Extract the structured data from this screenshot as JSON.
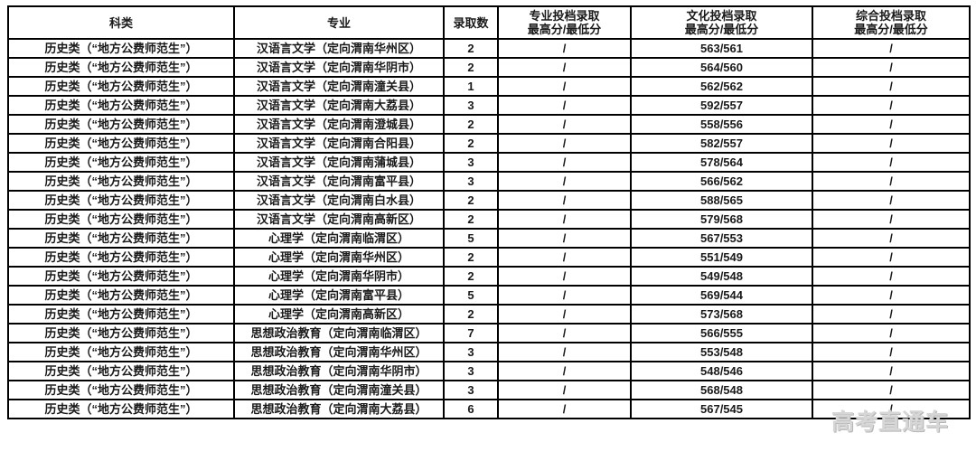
{
  "table": {
    "headers": [
      {
        "line1": "科类",
        "line2": ""
      },
      {
        "line1": "专业",
        "line2": ""
      },
      {
        "line1": "录取数",
        "line2": ""
      },
      {
        "line1": "专业投档录取",
        "line2": "最高分/最低分"
      },
      {
        "line1": "文化投档录取",
        "line2": "最高分/最低分"
      },
      {
        "line1": "综合投档录取",
        "line2": "最高分/最低分"
      }
    ],
    "rows": [
      {
        "category": "历史类（“地方公费师范生”）",
        "major": "汉语言文学（定向渭南华州区）",
        "count": "2",
        "major_score": "/",
        "culture_score": "563/561",
        "comprehensive_score": "/"
      },
      {
        "category": "历史类（“地方公费师范生”）",
        "major": "汉语言文学（定向渭南华阴市）",
        "count": "2",
        "major_score": "/",
        "culture_score": "564/560",
        "comprehensive_score": "/"
      },
      {
        "category": "历史类（“地方公费师范生”）",
        "major": "汉语言文学（定向渭南潼关县）",
        "count": "1",
        "major_score": "/",
        "culture_score": "562/562",
        "comprehensive_score": "/"
      },
      {
        "category": "历史类（“地方公费师范生”）",
        "major": "汉语言文学（定向渭南大荔县）",
        "count": "3",
        "major_score": "/",
        "culture_score": "592/557",
        "comprehensive_score": "/"
      },
      {
        "category": "历史类（“地方公费师范生”）",
        "major": "汉语言文学（定向渭南澄城县）",
        "count": "2",
        "major_score": "/",
        "culture_score": "558/556",
        "comprehensive_score": "/"
      },
      {
        "category": "历史类（“地方公费师范生”）",
        "major": "汉语言文学（定向渭南合阳县）",
        "count": "2",
        "major_score": "/",
        "culture_score": "582/557",
        "comprehensive_score": "/"
      },
      {
        "category": "历史类（“地方公费师范生”）",
        "major": "汉语言文学（定向渭南蒲城县）",
        "count": "3",
        "major_score": "/",
        "culture_score": "578/564",
        "comprehensive_score": "/"
      },
      {
        "category": "历史类（“地方公费师范生”）",
        "major": "汉语言文学（定向渭南富平县）",
        "count": "3",
        "major_score": "/",
        "culture_score": "566/562",
        "comprehensive_score": "/"
      },
      {
        "category": "历史类（“地方公费师范生”）",
        "major": "汉语言文学（定向渭南白水县）",
        "count": "2",
        "major_score": "/",
        "culture_score": "588/565",
        "comprehensive_score": "/"
      },
      {
        "category": "历史类（“地方公费师范生”）",
        "major": "汉语言文学（定向渭南高新区）",
        "count": "2",
        "major_score": "/",
        "culture_score": "579/568",
        "comprehensive_score": "/"
      },
      {
        "category": "历史类（“地方公费师范生”）",
        "major": "心理学（定向渭南临渭区）",
        "count": "5",
        "major_score": "/",
        "culture_score": "567/553",
        "comprehensive_score": "/"
      },
      {
        "category": "历史类（“地方公费师范生”）",
        "major": "心理学（定向渭南华州区）",
        "count": "2",
        "major_score": "/",
        "culture_score": "551/549",
        "comprehensive_score": "/"
      },
      {
        "category": "历史类（“地方公费师范生”）",
        "major": "心理学（定向渭南华阴市）",
        "count": "2",
        "major_score": "/",
        "culture_score": "549/548",
        "comprehensive_score": "/"
      },
      {
        "category": "历史类（“地方公费师范生”）",
        "major": "心理学（定向渭南富平县）",
        "count": "5",
        "major_score": "/",
        "culture_score": "569/544",
        "comprehensive_score": "/"
      },
      {
        "category": "历史类（“地方公费师范生”）",
        "major": "心理学（定向渭南高新区）",
        "count": "2",
        "major_score": "/",
        "culture_score": "573/568",
        "comprehensive_score": "/"
      },
      {
        "category": "历史类（“地方公费师范生”）",
        "major": "思想政治教育（定向渭南临渭区）",
        "count": "7",
        "major_score": "/",
        "culture_score": "566/555",
        "comprehensive_score": "/"
      },
      {
        "category": "历史类（“地方公费师范生”）",
        "major": "思想政治教育（定向渭南华州区）",
        "count": "3",
        "major_score": "/",
        "culture_score": "553/548",
        "comprehensive_score": "/"
      },
      {
        "category": "历史类（“地方公费师范生”）",
        "major": "思想政治教育（定向渭南华阴市）",
        "count": "3",
        "major_score": "/",
        "culture_score": "548/546",
        "comprehensive_score": "/"
      },
      {
        "category": "历史类（“地方公费师范生”）",
        "major": "思想政治教育（定向渭南潼关县）",
        "count": "3",
        "major_score": "/",
        "culture_score": "568/548",
        "comprehensive_score": "/"
      },
      {
        "category": "历史类（“地方公费师范生”）",
        "major": "思想政治教育（定向渭南大荔县）",
        "count": "6",
        "major_score": "/",
        "culture_score": "567/545",
        "comprehensive_score": "/"
      }
    ]
  },
  "watermark": {
    "text": "高考直通车",
    "color": "#d6d6d6"
  },
  "colors": {
    "border": "#000000",
    "text": "#1a1a1a",
    "background": "#ffffff"
  }
}
